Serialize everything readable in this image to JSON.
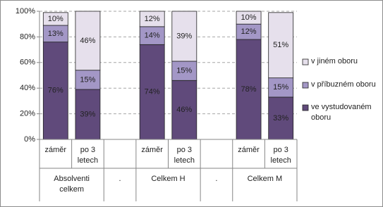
{
  "chart_data": {
    "type": "stacked-bar",
    "categories": [
      "záměr",
      "po 3 letech",
      null,
      "záměr",
      "po 3 letech",
      null,
      "záměr",
      "po 3 letech"
    ],
    "groups": [
      "Absolventi celkem",
      ".",
      "Celkem H",
      ".",
      "Celkem M"
    ],
    "series": [
      {
        "name": "ve vystudovaném oboru",
        "color": "#604a7b",
        "values": [
          76,
          39,
          null,
          74,
          46,
          null,
          78,
          33
        ],
        "value_labels": [
          "76%",
          "39%",
          null,
          "74%",
          "46%",
          null,
          "78%",
          "33%"
        ]
      },
      {
        "name": "v příbuzném oboru",
        "color": "#a397c6",
        "values": [
          13,
          15,
          null,
          14,
          15,
          null,
          12,
          15
        ],
        "value_labels": [
          "13%",
          "15%",
          null,
          "14%",
          "15%",
          null,
          "12%",
          "15%"
        ]
      },
      {
        "name": "v jiném oboru",
        "color": "#e6e0ec",
        "values": [
          10,
          46,
          null,
          12,
          39,
          null,
          10,
          51
        ],
        "value_labels": [
          "10%",
          "46%",
          null,
          "12%",
          "39%",
          null,
          "10%",
          "51%"
        ]
      }
    ],
    "ylim": [
      0,
      100
    ],
    "yticks": [
      {
        "value": 0,
        "label": "0%"
      },
      {
        "value": 20,
        "label": "20%"
      },
      {
        "value": 40,
        "label": "40%"
      },
      {
        "value": 60,
        "label": "60%"
      },
      {
        "value": 80,
        "label": "80%"
      },
      {
        "value": 100,
        "label": "100%"
      }
    ],
    "grid": true,
    "legend": "right"
  }
}
